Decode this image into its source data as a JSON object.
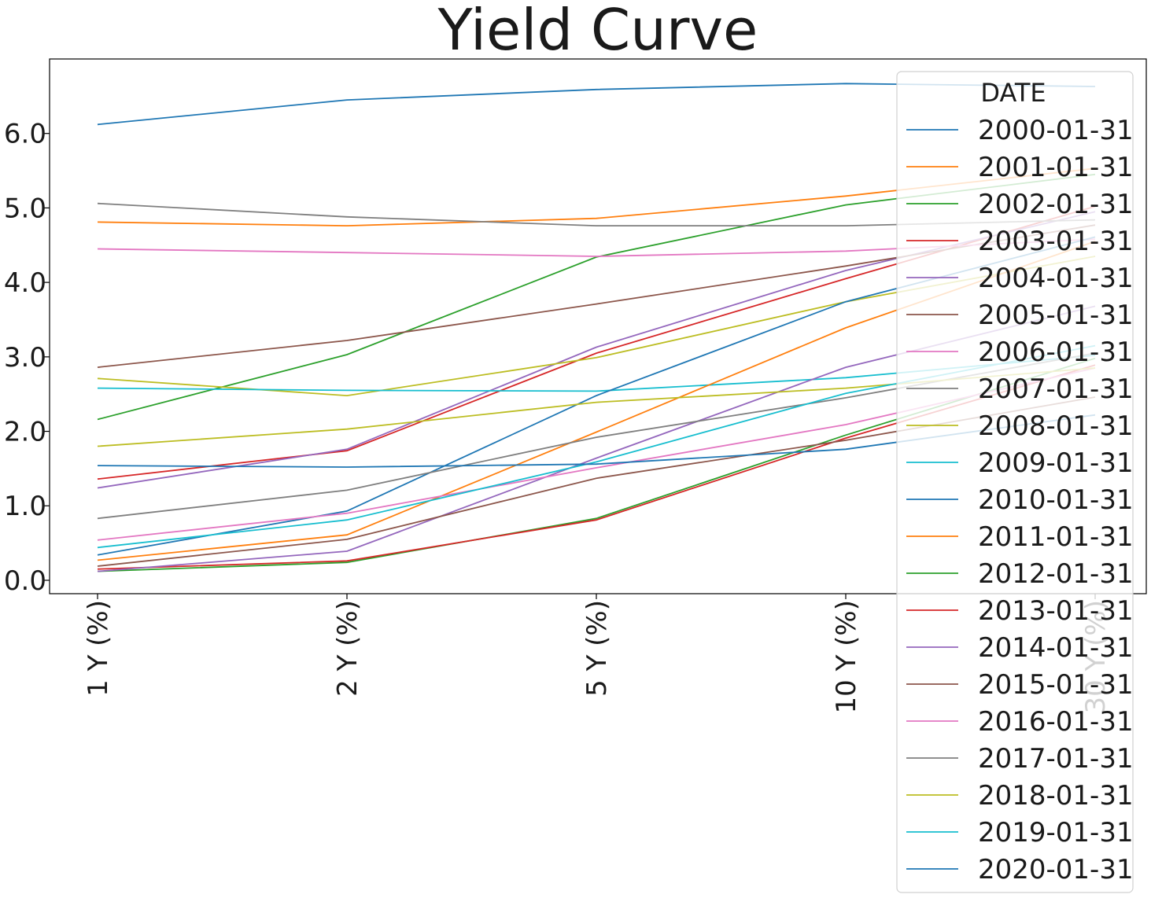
{
  "chart_data": {
    "type": "line",
    "title": "Yield Curve",
    "xlabel": "",
    "ylabel": "",
    "categories": [
      "1 Y (%)",
      "2 Y (%)",
      "5 Y (%)",
      "10 Y (%)",
      "30 Y (%)"
    ],
    "yticks": [
      "0.0",
      "1.0",
      "2.0",
      "3.0",
      "4.0",
      "5.0",
      "6.0"
    ],
    "ylim": [
      -0.18,
      7.0
    ],
    "grid": false,
    "legend": {
      "title": "DATE",
      "placement": "right"
    },
    "series": [
      {
        "name": "2000-01-31",
        "color": "#1f77b4",
        "values": [
          6.12,
          6.45,
          6.59,
          6.67,
          6.63
        ]
      },
      {
        "name": "2001-01-31",
        "color": "#ff7f0e",
        "values": [
          4.81,
          4.76,
          4.86,
          5.16,
          5.53
        ]
      },
      {
        "name": "2002-01-31",
        "color": "#2ca02c",
        "values": [
          2.16,
          3.03,
          4.34,
          5.04,
          5.45
        ]
      },
      {
        "name": "2003-01-31",
        "color": "#d62728",
        "values": [
          1.36,
          1.74,
          3.05,
          4.05,
          5.02
        ]
      },
      {
        "name": "2004-01-31",
        "color": "#9467bd",
        "values": [
          1.24,
          1.76,
          3.13,
          4.16,
          4.95
        ]
      },
      {
        "name": "2005-01-31",
        "color": "#8c564b",
        "values": [
          2.86,
          3.22,
          3.71,
          4.22,
          4.77
        ]
      },
      {
        "name": "2006-01-31",
        "color": "#e377c2",
        "values": [
          4.45,
          4.4,
          4.35,
          4.42,
          4.58
        ]
      },
      {
        "name": "2007-01-31",
        "color": "#7f7f7f",
        "values": [
          5.06,
          4.88,
          4.76,
          4.76,
          4.84
        ]
      },
      {
        "name": "2008-01-31",
        "color": "#bcbd22",
        "values": [
          2.71,
          2.48,
          2.99,
          3.74,
          4.35
        ]
      },
      {
        "name": "2009-01-31",
        "color": "#17becf",
        "values": [
          2.58,
          2.55,
          2.54,
          2.72,
          3.02
        ]
      },
      {
        "name": "2010-01-31",
        "color": "#1f77b4",
        "values": [
          0.34,
          0.93,
          2.48,
          3.74,
          4.61
        ]
      },
      {
        "name": "2011-01-31",
        "color": "#ff7f0e",
        "values": [
          0.27,
          0.61,
          1.99,
          3.39,
          4.55
        ]
      },
      {
        "name": "2012-01-31",
        "color": "#2ca02c",
        "values": [
          0.12,
          0.24,
          0.83,
          1.95,
          2.98
        ]
      },
      {
        "name": "2013-01-31",
        "color": "#d62728",
        "values": [
          0.15,
          0.26,
          0.81,
          1.91,
          2.89
        ]
      },
      {
        "name": "2014-01-31",
        "color": "#9467bd",
        "values": [
          0.12,
          0.39,
          1.64,
          2.86,
          3.68
        ]
      },
      {
        "name": "2015-01-31",
        "color": "#8c564b",
        "values": [
          0.19,
          0.55,
          1.37,
          1.88,
          2.46
        ]
      },
      {
        "name": "2016-01-31",
        "color": "#e377c2",
        "values": [
          0.54,
          0.9,
          1.51,
          2.09,
          2.85
        ]
      },
      {
        "name": "2017-01-31",
        "color": "#7f7f7f",
        "values": [
          0.83,
          1.21,
          1.92,
          2.45,
          3.05
        ]
      },
      {
        "name": "2018-01-31",
        "color": "#bcbd22",
        "values": [
          1.8,
          2.03,
          2.39,
          2.58,
          2.85
        ]
      },
      {
        "name": "2019-01-31",
        "color": "#17becf",
        "values": [
          0.44,
          0.81,
          1.59,
          2.51,
          3.15
        ]
      },
      {
        "name": "2020-01-31",
        "color": "#1f77b4",
        "values": [
          1.54,
          1.52,
          1.56,
          1.76,
          2.22
        ]
      }
    ]
  }
}
